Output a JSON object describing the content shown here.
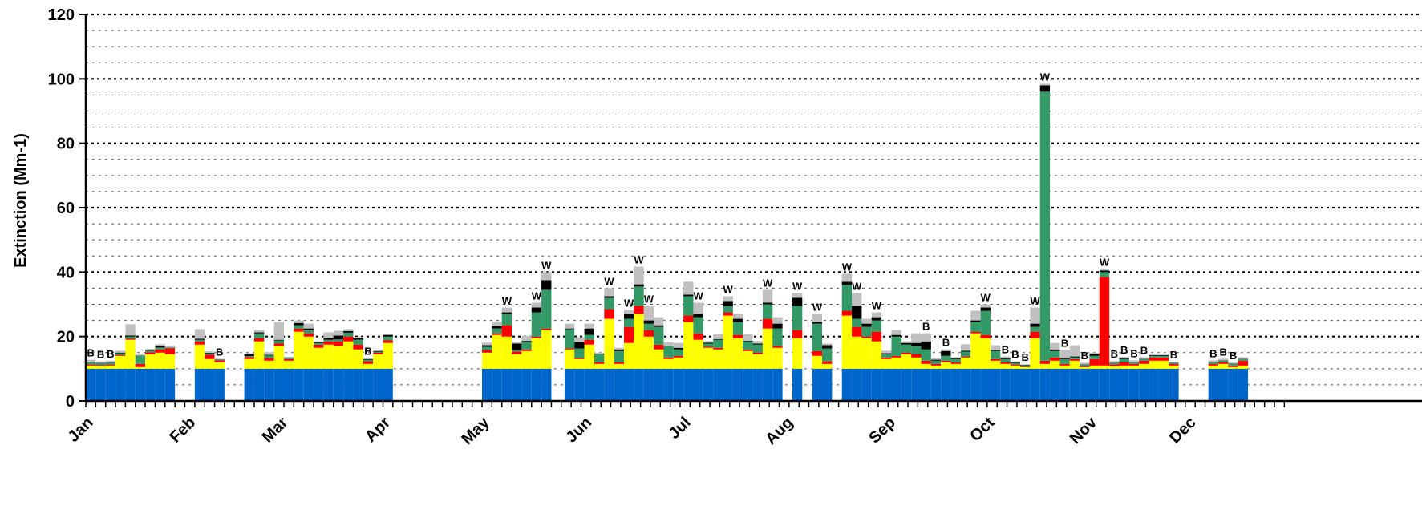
{
  "chart_data": {
    "type": "bar",
    "stacked": true,
    "ylabel": "Extinction (Mm-1)",
    "ylim": [
      0,
      120
    ],
    "yticks": [
      0,
      20,
      40,
      60,
      80,
      100,
      120
    ],
    "grid": "dotted horizontal lines every 5 units, bolder every 20",
    "xlabels": [
      "Jan",
      "Feb",
      "Mar",
      "Apr",
      "May",
      "Jun",
      "Jul",
      "Aug",
      "Sep",
      "Oct",
      "Nov",
      "Dec"
    ],
    "colors": [
      "#0066cc",
      "#ffff00",
      "#ff0000",
      "#339966",
      "#000000",
      "#c0c0c0"
    ],
    "x_start": "Jan 1",
    "day_step": 3,
    "bars": [
      {
        "day": 1,
        "values": [
          10,
          1.0,
          0.3,
          0.7,
          0.2,
          0.6
        ],
        "flag": "B"
      },
      {
        "day": 4,
        "values": [
          10,
          0.8,
          0.3,
          0.6,
          0.1,
          0.5
        ],
        "flag": "B"
      },
      {
        "day": 7,
        "values": [
          10,
          1.0,
          0.3,
          0.6,
          0.1,
          0.5
        ],
        "flag": "B"
      },
      {
        "day": 10,
        "values": [
          10,
          4.0,
          0.3,
          0.5,
          0.2,
          0.6
        ]
      },
      {
        "day": 13,
        "values": [
          10,
          9.0,
          0.3,
          0.7,
          0.3,
          3.5
        ]
      },
      {
        "day": 16,
        "values": [
          10,
          0.5,
          1.0,
          2.5,
          0.1,
          0.3
        ]
      },
      {
        "day": 19,
        "values": [
          10,
          4.5,
          0.6,
          0.5,
          0.1,
          0.5
        ]
      },
      {
        "day": 22,
        "values": [
          10,
          5.0,
          1.0,
          0.6,
          0.5,
          0.5
        ]
      },
      {
        "day": 25,
        "values": [
          10,
          4.5,
          1.8,
          0.2,
          0.1,
          0.5
        ]
      },
      {
        "day": 34,
        "values": [
          10,
          7.5,
          1.0,
          0.5,
          0.3,
          3.0
        ]
      },
      {
        "day": 37,
        "values": [
          10,
          3.0,
          1.3,
          0.3,
          0.3,
          0.5
        ]
      },
      {
        "day": 40,
        "values": [
          10,
          2.0,
          0.6,
          0.2,
          0.1,
          0.2
        ],
        "flag": "B"
      },
      {
        "day": 49,
        "values": [
          10,
          3.0,
          0.6,
          0.3,
          0.6,
          0.3
        ]
      },
      {
        "day": 52,
        "values": [
          10,
          8.5,
          1.0,
          1.5,
          0.3,
          0.8
        ]
      },
      {
        "day": 55,
        "values": [
          10,
          2.5,
          0.8,
          0.8,
          0.2,
          0.8
        ]
      },
      {
        "day": 58,
        "values": [
          10,
          7.0,
          0.8,
          1.0,
          0.2,
          5.5
        ]
      },
      {
        "day": 61,
        "values": [
          10,
          2.5,
          0.5,
          0.3,
          0.1,
          0.3
        ]
      },
      {
        "day": 64,
        "values": [
          10,
          11.5,
          1.0,
          1.0,
          0.7,
          0.8
        ]
      },
      {
        "day": 67,
        "values": [
          10,
          10.0,
          1.0,
          1.0,
          0.5,
          1.5
        ]
      },
      {
        "day": 70,
        "values": [
          10,
          6.5,
          1.0,
          0.5,
          0.3,
          0.2
        ]
      },
      {
        "day": 73,
        "values": [
          10,
          7.5,
          1.0,
          0.5,
          0.5,
          1.8
        ]
      },
      {
        "day": 76,
        "values": [
          10,
          7.0,
          1.5,
          0.6,
          1.2,
          1.5
        ]
      },
      {
        "day": 79,
        "values": [
          10,
          8.5,
          1.5,
          1.2,
          0.5,
          0.6
        ]
      },
      {
        "day": 82,
        "values": [
          10,
          6.0,
          1.5,
          1.5,
          0.5,
          0.4
        ]
      },
      {
        "day": 85,
        "values": [
          10,
          1.5,
          0.8,
          0.5,
          0.2,
          0.3
        ],
        "flag": "B"
      },
      {
        "day": 88,
        "values": [
          10,
          4.5,
          0.5,
          0.3,
          0.2,
          0.3
        ]
      },
      {
        "day": 91,
        "values": [
          10,
          8.0,
          0.8,
          1.2,
          0.5,
          0.3
        ]
      },
      {
        "day": 121,
        "values": [
          10,
          5.0,
          0.8,
          1.0,
          0.5,
          0.8
        ]
      },
      {
        "day": 124,
        "values": [
          10,
          10.5,
          0.5,
          1.5,
          0.7,
          1.5
        ]
      },
      {
        "day": 127,
        "values": [
          10,
          10.0,
          3.5,
          3.5,
          0.5,
          1.5
        ],
        "flag": "W"
      },
      {
        "day": 130,
        "values": [
          10,
          4.5,
          0.8,
          0.5,
          2.0,
          0.5
        ]
      },
      {
        "day": 133,
        "values": [
          10,
          5.5,
          0.5,
          2.5,
          0.2,
          1.5
        ]
      },
      {
        "day": 136,
        "values": [
          10,
          9.5,
          0.5,
          7.5,
          1.5,
          1.5
        ],
        "flag": "W"
      },
      {
        "day": 139,
        "values": [
          10,
          12.0,
          0.5,
          12.0,
          3.0,
          2.5
        ],
        "flag": "W"
      },
      {
        "day": 146,
        "values": [
          10,
          6.0,
          0.3,
          6.0,
          0.2,
          1.5
        ]
      },
      {
        "day": 149,
        "values": [
          10,
          3.0,
          0.3,
          3.0,
          2.0,
          1.5
        ]
      },
      {
        "day": 152,
        "values": [
          10,
          7.5,
          1.5,
          1.5,
          2.0,
          1.5
        ]
      },
      {
        "day": 155,
        "values": [
          10,
          1.5,
          0.5,
          2.5,
          0.2,
          0.3
        ]
      },
      {
        "day": 158,
        "values": [
          10,
          15.5,
          3.0,
          3.5,
          0.5,
          2.5
        ],
        "flag": "W"
      },
      {
        "day": 161,
        "values": [
          10,
          1.5,
          0.5,
          3.5,
          0.5,
          0.5
        ]
      },
      {
        "day": 164,
        "values": [
          10,
          8.0,
          5.0,
          2.5,
          1.5,
          1.3
        ],
        "flag": "W"
      },
      {
        "day": 167,
        "values": [
          10,
          17.0,
          2.5,
          6.0,
          0.7,
          5.5
        ],
        "flag": "W"
      },
      {
        "day": 170,
        "values": [
          10,
          10.0,
          2.0,
          2.0,
          1.0,
          4.5
        ],
        "flag": "W"
      },
      {
        "day": 173,
        "values": [
          10,
          6.0,
          1.5,
          5.5,
          0.5,
          2.5
        ]
      },
      {
        "day": 176,
        "values": [
          10,
          3.0,
          0.5,
          3.5,
          0.2,
          1.2
        ]
      },
      {
        "day": 179,
        "values": [
          10,
          3.5,
          0.5,
          2.0,
          0.5,
          1.5
        ]
      },
      {
        "day": 182,
        "values": [
          10,
          14.5,
          2.0,
          6.0,
          0.5,
          4.0
        ]
      },
      {
        "day": 185,
        "values": [
          10,
          9.0,
          2.0,
          5.0,
          1.0,
          3.5
        ],
        "flag": "W"
      },
      {
        "day": 188,
        "values": [
          10,
          6.5,
          0.3,
          1.0,
          0.3,
          0.5
        ]
      },
      {
        "day": 191,
        "values": [
          10,
          6.0,
          0.5,
          2.5,
          0.2,
          1.5
        ]
      },
      {
        "day": 194,
        "values": [
          10,
          16.5,
          1.0,
          2.0,
          1.5,
          1.5
        ],
        "flag": "W"
      },
      {
        "day": 197,
        "values": [
          10,
          9.5,
          1.0,
          4.0,
          1.0,
          1.5
        ]
      },
      {
        "day": 200,
        "values": [
          10,
          5.5,
          0.5,
          2.5,
          0.2,
          2.0
        ]
      },
      {
        "day": 203,
        "values": [
          10,
          4.5,
          0.5,
          2.5,
          0.3,
          0.8
        ]
      },
      {
        "day": 206,
        "values": [
          10,
          12.5,
          3.0,
          4.5,
          0.5,
          4.0
        ],
        "flag": "W"
      },
      {
        "day": 209,
        "values": [
          10,
          6.5,
          0.5,
          5.5,
          1.5,
          2.0
        ]
      },
      {
        "day": 215,
        "values": [
          10,
          9.5,
          2.5,
          7.5,
          2.5,
          1.5
        ],
        "flag": "W"
      },
      {
        "day": 221,
        "values": [
          10,
          4.0,
          1.5,
          8.5,
          0.5,
          2.5
        ],
        "flag": "W"
      },
      {
        "day": 224,
        "values": [
          10,
          1.5,
          0.8,
          4.0,
          1.0,
          0.5
        ]
      },
      {
        "day": 230,
        "values": [
          10,
          16.5,
          1.5,
          8.0,
          1.0,
          2.5
        ],
        "flag": "W"
      },
      {
        "day": 233,
        "values": [
          10,
          10.0,
          3.0,
          2.5,
          4.0,
          4.0
        ],
        "flag": "W"
      },
      {
        "day": 236,
        "values": [
          10,
          9.5,
          0.5,
          3.0,
          1.0,
          1.5
        ]
      },
      {
        "day": 239,
        "values": [
          10,
          8.5,
          3.0,
          3.5,
          1.0,
          1.5
        ],
        "flag": "W"
      },
      {
        "day": 242,
        "values": [
          10,
          3.0,
          0.5,
          1.0,
          0.3,
          0.8
        ]
      },
      {
        "day": 245,
        "values": [
          10,
          3.5,
          0.5,
          6.0,
          0.5,
          1.5
        ]
      },
      {
        "day": 248,
        "values": [
          10,
          4.5,
          0.5,
          2.5,
          0.5,
          0.5
        ]
      },
      {
        "day": 251,
        "values": [
          10,
          3.5,
          1.0,
          2.5,
          1.0,
          3.0
        ]
      },
      {
        "day": 254,
        "values": [
          10,
          1.5,
          1.0,
          3.5,
          2.5,
          2.5
        ],
        "flag": "B"
      },
      {
        "day": 257,
        "values": [
          10,
          1.0,
          0.5,
          1.0,
          0.3,
          0.5
        ]
      },
      {
        "day": 260,
        "values": [
          10,
          2.0,
          0.5,
          1.5,
          1.5,
          0.5
        ],
        "flag": "B"
      },
      {
        "day": 263,
        "values": [
          10,
          1.5,
          0.5,
          1.0,
          0.3,
          0.3
        ]
      },
      {
        "day": 266,
        "values": [
          10,
          3.5,
          0.3,
          1.5,
          0.3,
          2.0
        ]
      },
      {
        "day": 269,
        "values": [
          10,
          11.0,
          0.5,
          3.0,
          0.5,
          3.0
        ]
      },
      {
        "day": 272,
        "values": [
          10,
          9.5,
          1.0,
          7.5,
          1.0,
          1.0
        ],
        "flag": "W"
      },
      {
        "day": 275,
        "values": [
          10,
          2.5,
          0.5,
          2.5,
          0.3,
          1.5
        ]
      },
      {
        "day": 278,
        "values": [
          10,
          1.5,
          0.5,
          1.0,
          0.3,
          0.5
        ],
        "flag": "B"
      },
      {
        "day": 281,
        "values": [
          10,
          1.0,
          0.3,
          0.5,
          0.2,
          0.3
        ],
        "flag": "B"
      },
      {
        "day": 284,
        "values": [
          10,
          0.5,
          0.2,
          0.4,
          0.1,
          0.2
        ],
        "flag": "B"
      },
      {
        "day": 287,
        "values": [
          10,
          9.5,
          2.0,
          1.5,
          1.0,
          5.0
        ],
        "flag": "W"
      },
      {
        "day": 290,
        "values": [
          10,
          1.5,
          1.0,
          83.5,
          2.0,
          0.5
        ],
        "flag": "W"
      },
      {
        "day": 293,
        "values": [
          10,
          2.5,
          1.0,
          2.0,
          0.5,
          2.0
        ]
      },
      {
        "day": 296,
        "values": [
          10,
          1.0,
          0.5,
          1.5,
          0.3,
          2.5
        ],
        "flag": "B"
      },
      {
        "day": 299,
        "values": [
          10,
          2.5,
          0.5,
          0.5,
          0.3,
          3.5
        ]
      },
      {
        "day": 302,
        "values": [
          10,
          0.5,
          0.3,
          0.5,
          0.1,
          0.5
        ],
        "flag": "B"
      },
      {
        "day": 305,
        "values": [
          10,
          1.0,
          2.0,
          1.0,
          0.5,
          0.5
        ]
      },
      {
        "day": 308,
        "values": [
          10,
          1.0,
          27.5,
          1.5,
          0.5,
          0.5
        ],
        "flag": "W"
      },
      {
        "day": 311,
        "values": [
          10,
          0.8,
          0.5,
          0.5,
          0.1,
          0.5
        ],
        "flag": "B"
      },
      {
        "day": 314,
        "values": [
          10,
          1.0,
          1.0,
          1.0,
          0.2,
          0.5
        ],
        "flag": "B"
      },
      {
        "day": 317,
        "values": [
          10,
          1.0,
          0.5,
          0.5,
          0.1,
          0.5
        ],
        "flag": "B"
      },
      {
        "day": 320,
        "values": [
          10,
          1.5,
          1.0,
          0.5,
          0.1,
          0.5
        ],
        "flag": "B"
      },
      {
        "day": 323,
        "values": [
          10,
          2.5,
          1.0,
          0.5,
          0.2,
          0.5
        ]
      },
      {
        "day": 326,
        "values": [
          10,
          2.5,
          1.0,
          0.5,
          0.2,
          0.5
        ]
      },
      {
        "day": 329,
        "values": [
          10,
          1.0,
          0.5,
          0.3,
          0.1,
          0.3
        ],
        "flag": "B"
      },
      {
        "day": 341,
        "values": [
          10,
          1.0,
          0.5,
          0.5,
          0.1,
          0.5
        ],
        "flag": "B"
      },
      {
        "day": 344,
        "values": [
          10,
          1.5,
          0.5,
          0.5,
          0.1,
          0.5
        ],
        "flag": "B"
      },
      {
        "day": 347,
        "values": [
          10,
          0.5,
          0.5,
          0.5,
          0.1,
          0.3
        ],
        "flag": "B"
      },
      {
        "day": 350,
        "values": [
          10,
          1.0,
          1.5,
          0.5,
          0.1,
          0.5
        ]
      }
    ]
  }
}
